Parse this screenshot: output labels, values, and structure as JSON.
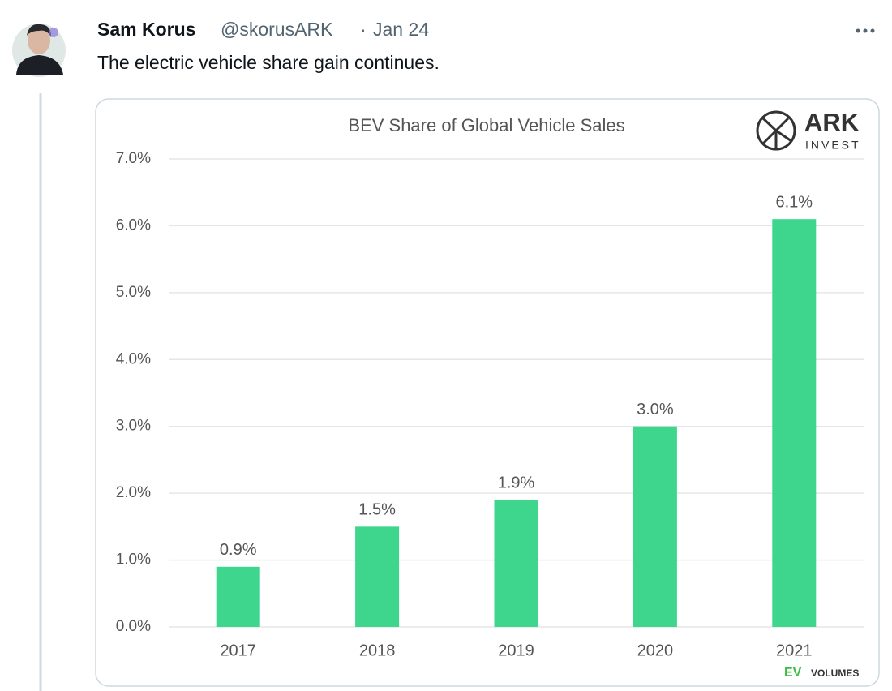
{
  "tweet": {
    "author": "Sam Korus",
    "handle": "@skorusARK",
    "date": "Jan 24",
    "text": "The electric vehicle share gain continues."
  },
  "branding": {
    "logo": "ARK",
    "logo_sub": "INVEST",
    "source_a": "EV",
    "source_b": "VOLUMES"
  },
  "chart_data": {
    "type": "bar",
    "title": "BEV Share of Global Vehicle Sales",
    "categories": [
      "2017",
      "2018",
      "2019",
      "2020",
      "2021"
    ],
    "values": [
      0.9,
      1.5,
      1.9,
      3.0,
      6.1
    ],
    "value_labels": [
      "0.9%",
      "1.5%",
      "1.9%",
      "3.0%",
      "6.1%"
    ],
    "color": "#3dd68c",
    "ylim": [
      0,
      7
    ],
    "yticks": [
      {
        "value": 0,
        "label": "0.0%"
      },
      {
        "value": 1,
        "label": "1.0%"
      },
      {
        "value": 2,
        "label": "2.0%"
      },
      {
        "value": 3,
        "label": "3.0%"
      },
      {
        "value": 4,
        "label": "4.0%"
      },
      {
        "value": 5,
        "label": "5.0%"
      },
      {
        "value": 6,
        "label": "6.0%"
      },
      {
        "value": 7,
        "label": "7.0%"
      }
    ],
    "grid": true
  }
}
